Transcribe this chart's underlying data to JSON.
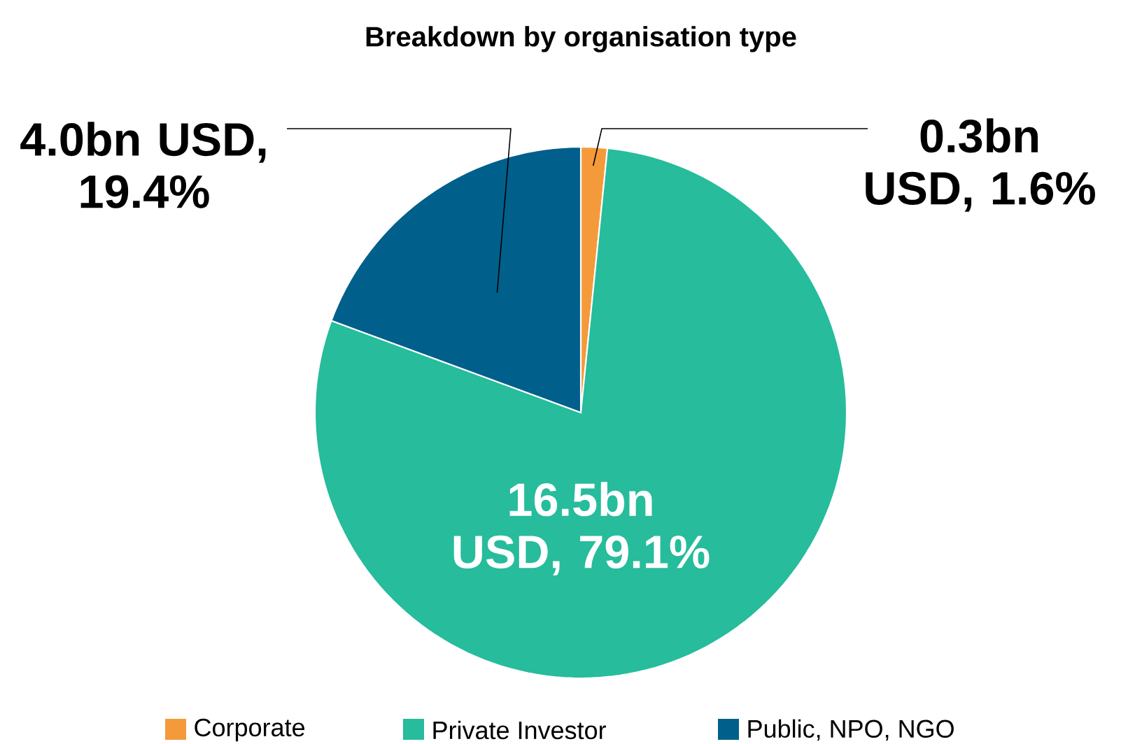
{
  "chart_data": {
    "type": "pie",
    "title": "Breakdown by organisation type",
    "categories": [
      "Corporate",
      "Private Investor",
      "Public, NPO, NGO"
    ],
    "values": [
      1.6,
      79.1,
      19.4
    ],
    "colors": [
      "#f59a3b",
      "#26bc9c",
      "#005f8b"
    ],
    "value_labels": [
      "0.3bn USD, 1.6%",
      "16.5bn USD, 79.1%",
      "4.0bn USD, 19.4%"
    ],
    "legend": "bottom"
  }
}
